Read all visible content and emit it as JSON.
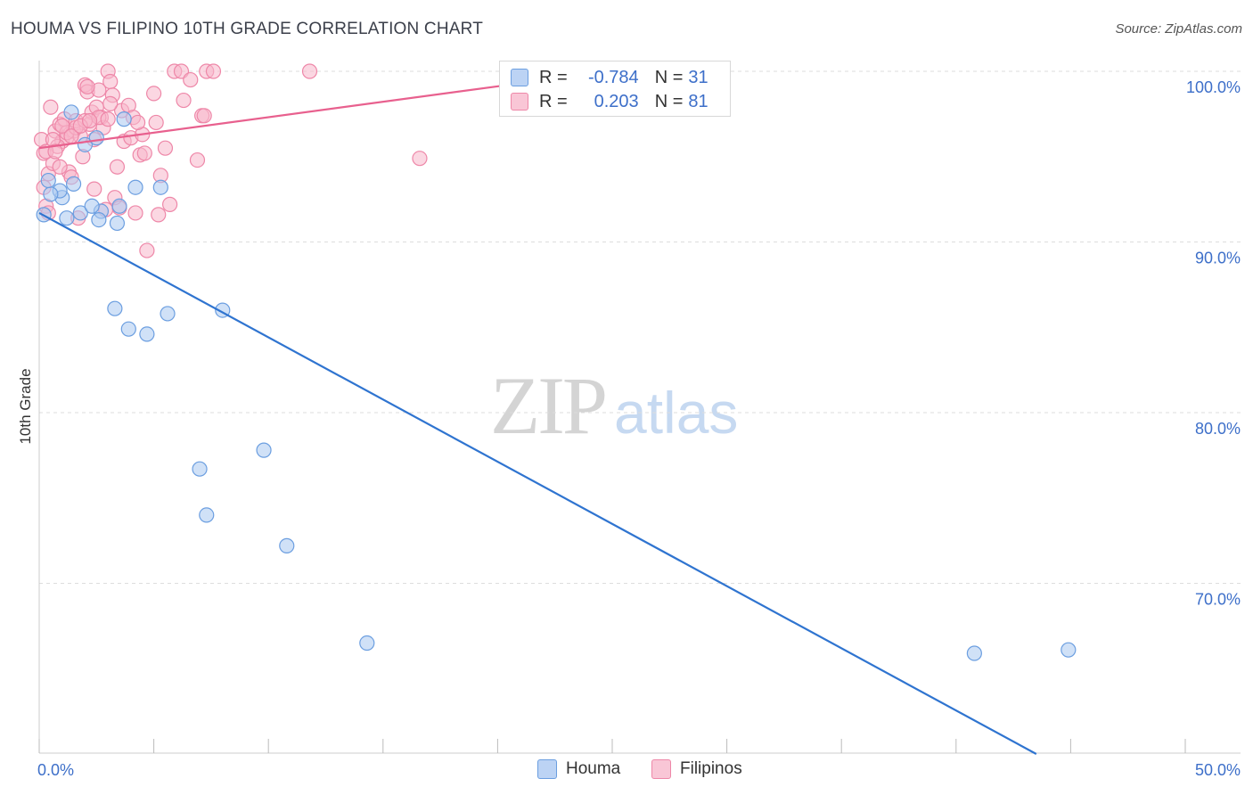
{
  "title": "HOUMA VS FILIPINO 10TH GRADE CORRELATION CHART",
  "source": "Source: ZipAtlas.com",
  "watermark": {
    "zip": "ZIP",
    "atlas": "atlas"
  },
  "colors": {
    "houma_fill": "#aac8f0",
    "houma_stroke": "#6b9ee0",
    "houma_line": "#2f74d0",
    "filipinos_fill": "#f7b6ca",
    "filipinos_stroke": "#ee87a8",
    "filipinos_line": "#e8608e",
    "axis_label": "#3d6fc9",
    "grid": "#dddddd"
  },
  "legend": {
    "rows": [
      {
        "r_label": "R =",
        "r_value": "-0.784",
        "n_label": "N =",
        "n_value": "31"
      },
      {
        "r_label": "R =",
        "r_value": "0.203",
        "n_label": "N =",
        "n_value": "81"
      }
    ]
  },
  "bottom_legend": {
    "houma": "Houma",
    "filipinos": "Filipinos"
  },
  "chart_data": {
    "type": "scatter",
    "title": "HOUMA VS FILIPINO 10TH GRADE CORRELATION CHART",
    "xlabel": "",
    "ylabel": "10th Grade",
    "xlim": [
      0,
      50
    ],
    "ylim": [
      60,
      101
    ],
    "x_tick_labels": [
      "0.0%",
      "50.0%"
    ],
    "y_ticks": [
      70,
      80,
      90,
      100
    ],
    "y_tick_labels": [
      "70.0%",
      "80.0%",
      "90.0%",
      "100.0%"
    ],
    "grid": true,
    "legend_position": "top-center",
    "series": [
      {
        "name": "Houma",
        "r": -0.784,
        "n": 31,
        "trend": {
          "x": [
            0,
            43.5
          ],
          "y": [
            91.7,
            60
          ]
        },
        "points": [
          {
            "x": 0.2,
            "y": 91.6
          },
          {
            "x": 1.2,
            "y": 91.4
          },
          {
            "x": 1.0,
            "y": 92.6
          },
          {
            "x": 0.9,
            "y": 93.0
          },
          {
            "x": 1.5,
            "y": 93.4
          },
          {
            "x": 1.8,
            "y": 91.7
          },
          {
            "x": 2.0,
            "y": 95.7
          },
          {
            "x": 2.7,
            "y": 91.8
          },
          {
            "x": 2.6,
            "y": 91.3
          },
          {
            "x": 2.5,
            "y": 96.1
          },
          {
            "x": 1.4,
            "y": 97.6
          },
          {
            "x": 3.7,
            "y": 97.2
          },
          {
            "x": 4.2,
            "y": 93.2
          },
          {
            "x": 5.3,
            "y": 93.2
          },
          {
            "x": 2.3,
            "y": 92.1
          },
          {
            "x": 3.4,
            "y": 91.1
          },
          {
            "x": 0.5,
            "y": 92.8
          },
          {
            "x": 3.3,
            "y": 86.1
          },
          {
            "x": 3.9,
            "y": 84.9
          },
          {
            "x": 4.7,
            "y": 84.6
          },
          {
            "x": 5.6,
            "y": 85.8
          },
          {
            "x": 8.0,
            "y": 86.0
          },
          {
            "x": 7.0,
            "y": 76.7
          },
          {
            "x": 7.3,
            "y": 74.0
          },
          {
            "x": 9.8,
            "y": 77.8
          },
          {
            "x": 10.8,
            "y": 72.2
          },
          {
            "x": 14.3,
            "y": 66.5
          },
          {
            "x": 40.8,
            "y": 65.9
          },
          {
            "x": 44.9,
            "y": 66.1
          },
          {
            "x": 0.4,
            "y": 93.6
          },
          {
            "x": 3.5,
            "y": 92.1
          }
        ]
      },
      {
        "name": "Filipinos",
        "r": 0.203,
        "n": 81,
        "trend": {
          "x": [
            0,
            21.0
          ],
          "y": [
            95.5,
            99.3
          ]
        },
        "points": [
          {
            "x": 0.2,
            "y": 95.2
          },
          {
            "x": 0.4,
            "y": 94.0
          },
          {
            "x": 0.3,
            "y": 92.1
          },
          {
            "x": 0.1,
            "y": 96.0
          },
          {
            "x": 0.6,
            "y": 94.6
          },
          {
            "x": 0.7,
            "y": 96.5
          },
          {
            "x": 0.9,
            "y": 96.9
          },
          {
            "x": 1.0,
            "y": 95.9
          },
          {
            "x": 1.1,
            "y": 97.2
          },
          {
            "x": 1.2,
            "y": 96.1
          },
          {
            "x": 1.3,
            "y": 94.1
          },
          {
            "x": 1.4,
            "y": 93.8
          },
          {
            "x": 1.5,
            "y": 96.5
          },
          {
            "x": 1.6,
            "y": 97.1
          },
          {
            "x": 1.8,
            "y": 96.2
          },
          {
            "x": 1.9,
            "y": 95.0
          },
          {
            "x": 2.0,
            "y": 99.2
          },
          {
            "x": 2.1,
            "y": 98.8
          },
          {
            "x": 2.2,
            "y": 96.9
          },
          {
            "x": 2.3,
            "y": 97.6
          },
          {
            "x": 2.4,
            "y": 93.1
          },
          {
            "x": 2.5,
            "y": 97.9
          },
          {
            "x": 2.6,
            "y": 98.9
          },
          {
            "x": 2.7,
            "y": 97.3
          },
          {
            "x": 2.8,
            "y": 96.7
          },
          {
            "x": 3.0,
            "y": 100.0
          },
          {
            "x": 3.1,
            "y": 99.4
          },
          {
            "x": 3.2,
            "y": 98.6
          },
          {
            "x": 3.3,
            "y": 92.6
          },
          {
            "x": 3.4,
            "y": 94.4
          },
          {
            "x": 3.6,
            "y": 97.7
          },
          {
            "x": 3.7,
            "y": 95.9
          },
          {
            "x": 3.9,
            "y": 98.0
          },
          {
            "x": 4.0,
            "y": 96.1
          },
          {
            "x": 4.2,
            "y": 91.7
          },
          {
            "x": 4.4,
            "y": 95.1
          },
          {
            "x": 4.5,
            "y": 96.3
          },
          {
            "x": 4.7,
            "y": 89.5
          },
          {
            "x": 5.0,
            "y": 98.7
          },
          {
            "x": 5.2,
            "y": 91.6
          },
          {
            "x": 5.3,
            "y": 93.9
          },
          {
            "x": 5.5,
            "y": 95.5
          },
          {
            "x": 5.7,
            "y": 92.2
          },
          {
            "x": 5.9,
            "y": 100.0
          },
          {
            "x": 6.2,
            "y": 100.0
          },
          {
            "x": 6.6,
            "y": 99.5
          },
          {
            "x": 6.9,
            "y": 94.8
          },
          {
            "x": 7.1,
            "y": 97.4
          },
          {
            "x": 7.3,
            "y": 100.0
          },
          {
            "x": 7.6,
            "y": 100.0
          },
          {
            "x": 11.8,
            "y": 100.0
          },
          {
            "x": 16.6,
            "y": 94.9
          },
          {
            "x": 0.5,
            "y": 97.9
          },
          {
            "x": 0.8,
            "y": 95.6
          },
          {
            "x": 1.7,
            "y": 91.4
          },
          {
            "x": 2.9,
            "y": 91.9
          },
          {
            "x": 3.5,
            "y": 92.0
          },
          {
            "x": 0.2,
            "y": 93.2
          },
          {
            "x": 0.3,
            "y": 95.3
          },
          {
            "x": 0.9,
            "y": 94.4
          },
          {
            "x": 1.2,
            "y": 96.4
          },
          {
            "x": 1.6,
            "y": 96.7
          },
          {
            "x": 2.0,
            "y": 97.1
          },
          {
            "x": 2.4,
            "y": 96.0
          },
          {
            "x": 2.6,
            "y": 97.3
          },
          {
            "x": 3.1,
            "y": 98.1
          },
          {
            "x": 4.1,
            "y": 97.3
          },
          {
            "x": 4.3,
            "y": 97.0
          },
          {
            "x": 4.6,
            "y": 95.2
          },
          {
            "x": 5.1,
            "y": 97.0
          },
          {
            "x": 0.6,
            "y": 96.0
          },
          {
            "x": 1.0,
            "y": 96.8
          },
          {
            "x": 1.4,
            "y": 96.2
          },
          {
            "x": 1.8,
            "y": 96.8
          },
          {
            "x": 2.2,
            "y": 97.1
          },
          {
            "x": 3.0,
            "y": 97.2
          },
          {
            "x": 0.4,
            "y": 91.7
          },
          {
            "x": 0.7,
            "y": 95.3
          },
          {
            "x": 6.3,
            "y": 98.3
          },
          {
            "x": 7.2,
            "y": 97.4
          },
          {
            "x": 2.1,
            "y": 99.1
          }
        ]
      }
    ]
  }
}
